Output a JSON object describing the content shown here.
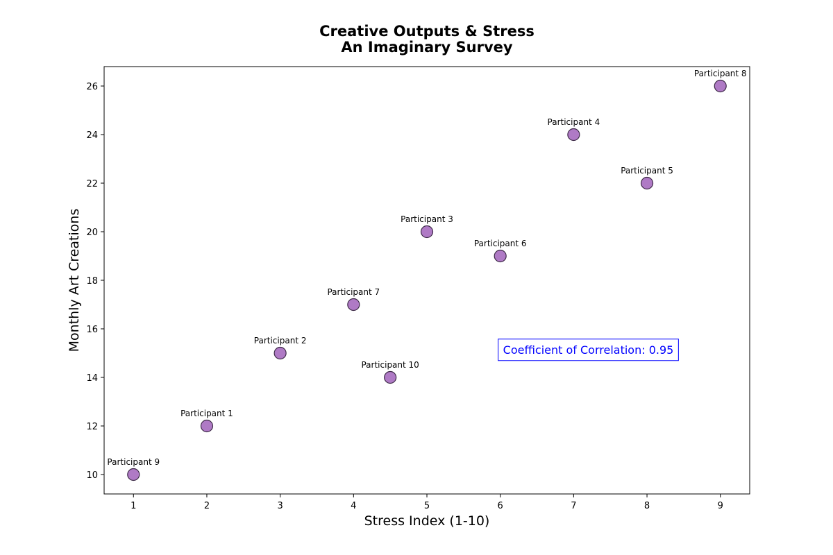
{
  "chart_data": {
    "type": "scatter",
    "title_lines": [
      "Creative Outputs & Stress",
      "An Imaginary Survey"
    ],
    "xlabel": "Stress Index (1-10)",
    "ylabel": "Monthly Art Creations",
    "xlim": [
      0.6,
      9.4
    ],
    "ylim": [
      9.2,
      26.8
    ],
    "xticks": [
      1,
      2,
      3,
      4,
      5,
      6,
      7,
      8,
      9
    ],
    "yticks": [
      10,
      12,
      14,
      16,
      18,
      20,
      22,
      24,
      26
    ],
    "grid": false,
    "marker_color": "#9b59b6",
    "marker_edge_color": "#3d2a47",
    "points": [
      {
        "label": "Participant 1",
        "x": 2,
        "y": 12
      },
      {
        "label": "Participant 2",
        "x": 3,
        "y": 15
      },
      {
        "label": "Participant 3",
        "x": 5,
        "y": 20
      },
      {
        "label": "Participant 4",
        "x": 7,
        "y": 24
      },
      {
        "label": "Participant 5",
        "x": 8,
        "y": 22
      },
      {
        "label": "Participant 6",
        "x": 6,
        "y": 19
      },
      {
        "label": "Participant 7",
        "x": 4,
        "y": 17
      },
      {
        "label": "Participant 8",
        "x": 9,
        "y": 26
      },
      {
        "label": "Participant 9",
        "x": 1,
        "y": 10
      },
      {
        "label": "Participant 10",
        "x": 4.5,
        "y": 14
      }
    ],
    "annotation": {
      "text": "Coefficient of Correlation: 0.95",
      "x": 7.2,
      "y": 15.15,
      "color": "#0000ff"
    }
  }
}
